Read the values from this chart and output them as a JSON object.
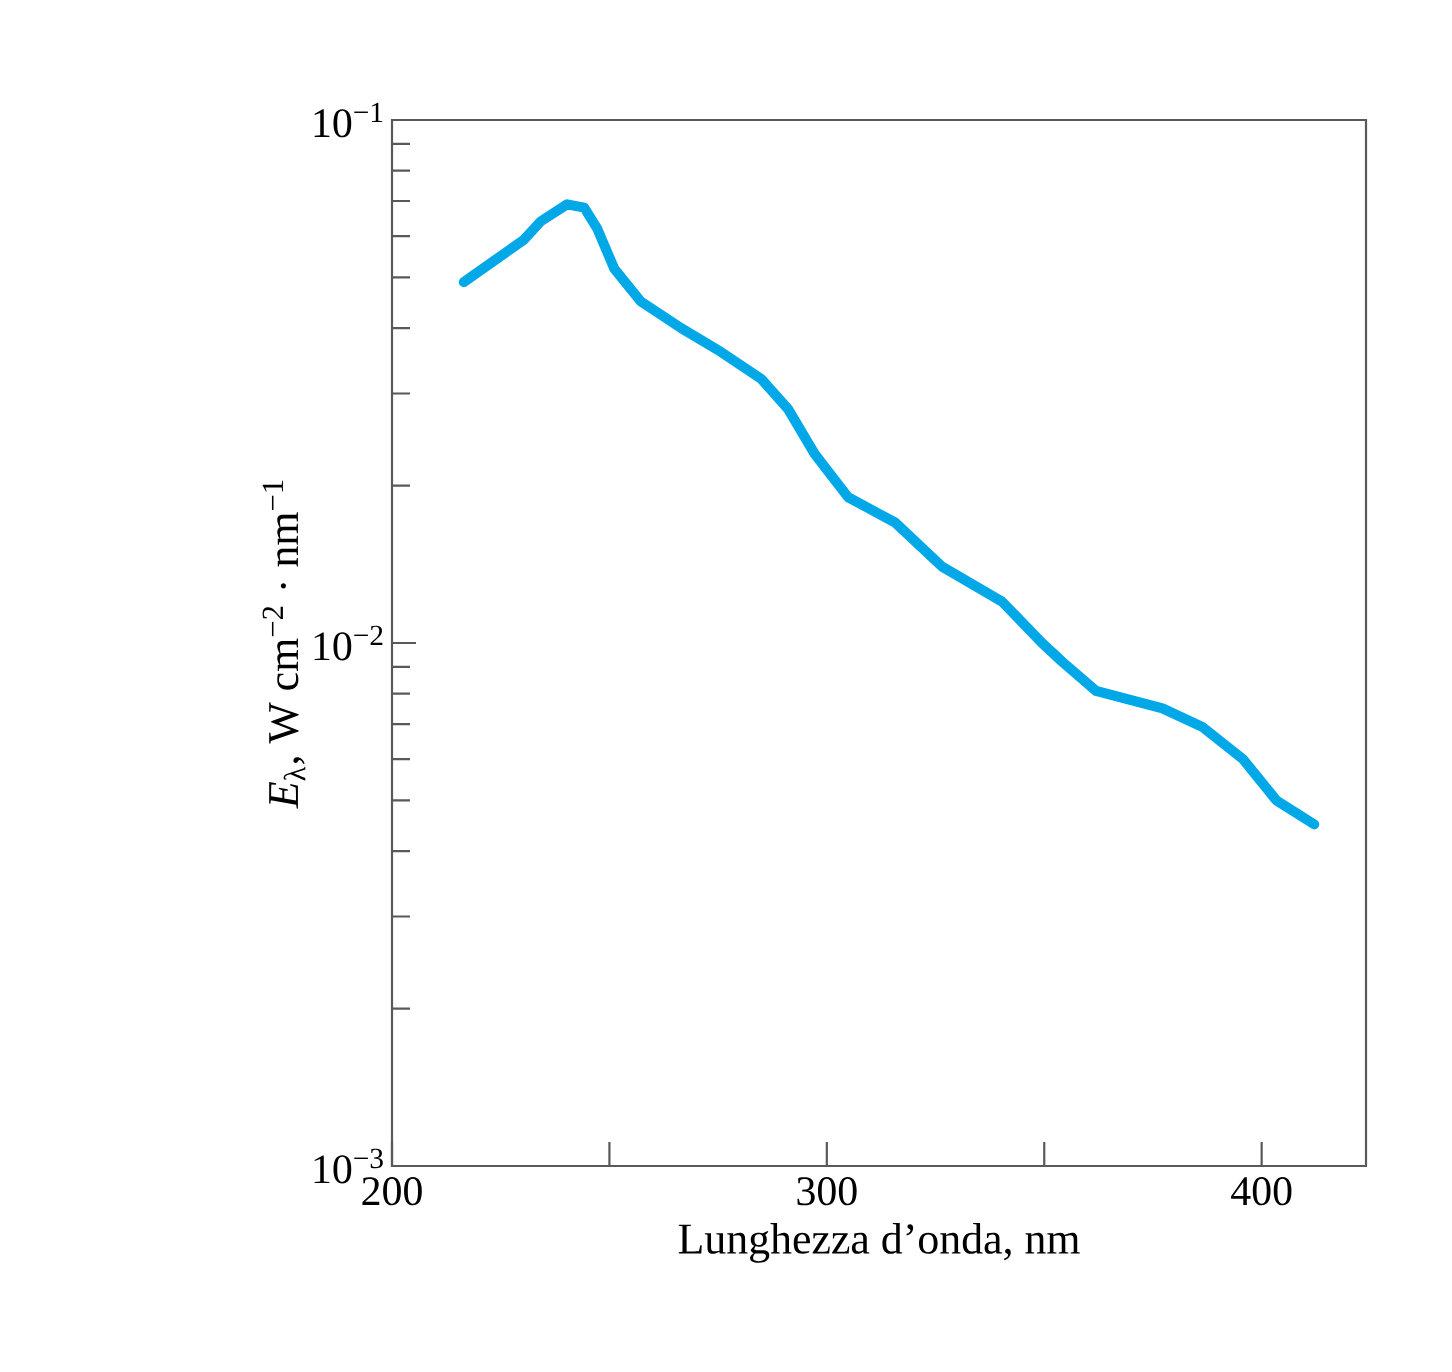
{
  "chart_data": {
    "type": "line",
    "xlabel": "Lunghezza d’onda, nm",
    "ylabel": "*E*$_{λ}$, W cm$^{−2}$ · nm$^{−1}$",
    "x": [
      216.5,
      230.3,
      234.2,
      240.3,
      244.2,
      247.2,
      251.1,
      257.2,
      266.5,
      275.7,
      284.9,
      291.1,
      297.2,
      304.9,
      315.7,
      326.5,
      340.3,
      349.5,
      354.2,
      361.9,
      377.2,
      386.5,
      395.7,
      403.4,
      412.1
    ],
    "series": [
      {
        "color": "#00a8e8",
        "values": [
          0.049,
          0.059,
          0.064,
          0.069,
          0.068,
          0.062,
          0.052,
          0.045,
          0.04,
          0.036,
          0.032,
          0.028,
          0.023,
          0.019,
          0.017,
          0.014,
          0.012,
          0.01,
          0.0092,
          0.0081,
          0.0075,
          0.0069,
          0.006,
          0.005,
          0.0045
        ]
      }
    ],
    "log": "y",
    "xlim": [
      200,
      424
    ],
    "ylim": [
      0.001,
      0.1
    ],
    "xticks": [
      200,
      {
        "value": 250,
        "label": null
      },
      300,
      {
        "value": 350,
        "label": null
      },
      400
    ],
    "yticks": [
      {
        "value": 0.001,
        "label": "10$^{−3}$"
      },
      {
        "value": 0.01,
        "label": "10$^{−2}$"
      },
      {
        "value": 0.1,
        "label": "10$^{−1}$"
      }
    ],
    "marker": "none",
    "line_style": "solid"
  }
}
